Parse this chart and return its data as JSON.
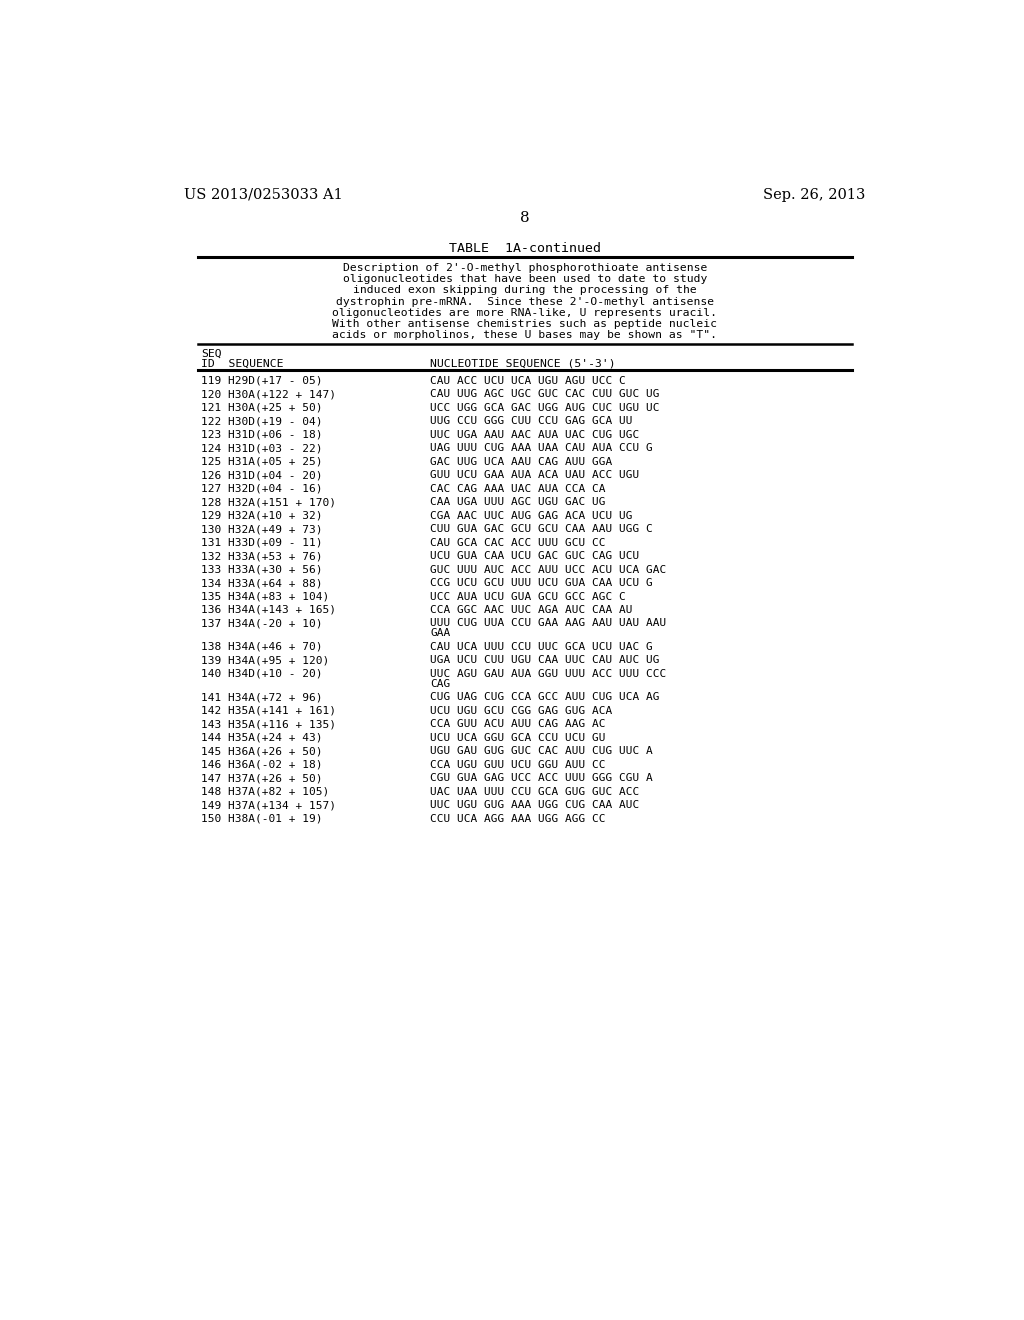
{
  "header_left": "US 2013/0253033 A1",
  "header_right": "Sep. 26, 2013",
  "page_number": "8",
  "table_title": "TABLE  1A-continued",
  "table_description_lines": [
    "Description of 2'-O-methyl phosphorothioate antisense",
    "oligonucleotides that have been used to date to study",
    "induced exon skipping during the processing of the",
    "dystrophin pre-mRNA.  Since these 2'-O-methyl antisense",
    "oligonucleotides are more RNA-like, U represents uracil.",
    "With other antisense chemistries such as peptide nucleic",
    "acids or morpholinos, these U bases may be shown as \"T\"."
  ],
  "col1_header1": "SEQ",
  "col1_header2": "ID  SEQUENCE",
  "col2_header": "NUCLEOTIDE SEQUENCE (5'-3')",
  "rows": [
    [
      "119 H29D(+17 - 05)",
      "CAU ACC UCU UCA UGU AGU UCC C"
    ],
    [
      "120 H30A(+122 + 147)",
      "CAU UUG AGC UGC GUC CAC CUU GUC UG"
    ],
    [
      "121 H30A(+25 + 50)",
      "UCC UGG GCA GAC UGG AUG CUC UGU UC"
    ],
    [
      "122 H30D(+19 - 04)",
      "UUG CCU GGG CUU CCU GAG GCA UU"
    ],
    [
      "123 H31D(+06 - 18)",
      "UUC UGA AAU AAC AUA UAC CUG UGC"
    ],
    [
      "124 H31D(+03 - 22)",
      "UAG UUU CUG AAA UAA CAU AUA CCU G"
    ],
    [
      "125 H31A(+05 + 25)",
      "GAC UUG UCA AAU CAG AUU GGA"
    ],
    [
      "126 H31D(+04 - 20)",
      "GUU UCU GAA AUA ACA UAU ACC UGU"
    ],
    [
      "127 H32D(+04 - 16)",
      "CAC CAG AAA UAC AUA CCA CA"
    ],
    [
      "128 H32A(+151 + 170)",
      "CAA UGA UUU AGC UGU GAC UG"
    ],
    [
      "129 H32A(+10 + 32)",
      "CGA AAC UUC AUG GAG ACA UCU UG"
    ],
    [
      "130 H32A(+49 + 73)",
      "CUU GUA GAC GCU GCU CAA AAU UGG C"
    ],
    [
      "131 H33D(+09 - 11)",
      "CAU GCA CAC ACC UUU GCU CC"
    ],
    [
      "132 H33A(+53 + 76)",
      "UCU GUA CAA UCU GAC GUC CAG UCU"
    ],
    [
      "133 H33A(+30 + 56)",
      "GUC UUU AUC ACC AUU UCC ACU UCA GAC"
    ],
    [
      "134 H33A(+64 + 88)",
      "CCG UCU GCU UUU UCU GUA CAA UCU G"
    ],
    [
      "135 H34A(+83 + 104)",
      "UCC AUA UCU GUA GCU GCC AGC C"
    ],
    [
      "136 H34A(+143 + 165)",
      "CCA GGC AAC UUC AGA AUC CAA AU"
    ],
    [
      "137 H34A(-20 + 10)",
      "UUU CUG UUA CCU GAA AAG AAU UAU AAU\nGAA"
    ],
    [
      "138 H34A(+46 + 70)",
      "CAU UCA UUU CCU UUC GCA UCU UAC G"
    ],
    [
      "139 H34A(+95 + 120)",
      "UGA UCU CUU UGU CAA UUC CAU AUC UG"
    ],
    [
      "140 H34D(+10 - 20)",
      "UUC AGU GAU AUA GGU UUU ACC UUU CCC\nCAG"
    ],
    [
      "141 H34A(+72 + 96)",
      "CUG UAG CUG CCA GCC AUU CUG UCA AG"
    ],
    [
      "142 H35A(+141 + 161)",
      "UCU UGU GCU CGG GAG GUG ACA"
    ],
    [
      "143 H35A(+116 + 135)",
      "CCA GUU ACU AUU CAG AAG AC"
    ],
    [
      "144 H35A(+24 + 43)",
      "UCU UCA GGU GCA CCU UCU GU"
    ],
    [
      "145 H36A(+26 + 50)",
      "UGU GAU GUG GUC CAC AUU CUG UUC A"
    ],
    [
      "146 H36A(-02 + 18)",
      "CCA UGU GUU UCU GGU AUU CC"
    ],
    [
      "147 H37A(+26 + 50)",
      "CGU GUA GAG UCC ACC UUU GGG CGU A"
    ],
    [
      "148 H37A(+82 + 105)",
      "UAC UAA UUU CCU GCA GUG GUC ACC"
    ],
    [
      "149 H37A(+134 + 157)",
      "UUC UGU GUG AAA UGG CUG CAA AUC"
    ],
    [
      "150 H38A(-01 + 19)",
      "CCU UCA AGG AAA UGG AGG CC"
    ]
  ]
}
